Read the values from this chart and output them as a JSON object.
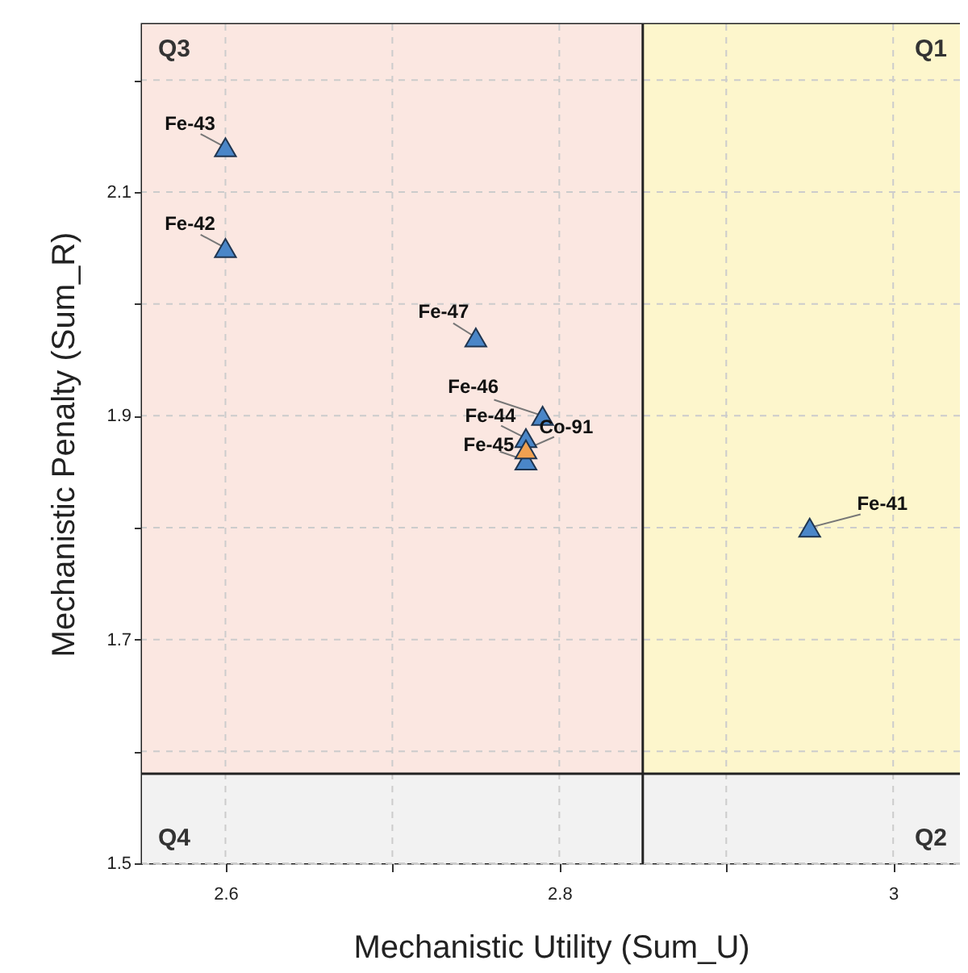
{
  "chart_data": {
    "type": "scatter",
    "xlabel": "Mechanistic Utility (Sum_U)",
    "ylabel": "Mechanistic Penalty (Sum_R)",
    "xlim": [
      2.55,
      3.04
    ],
    "ylim": [
      1.5,
      2.25
    ],
    "xticks": [
      2.6,
      {
        "value": 2.7,
        "label": null
      },
      2.8,
      {
        "value": 2.9,
        "label": null
      },
      3
    ],
    "yticks": [
      1.5,
      {
        "value": 1.6,
        "label": null
      },
      1.7,
      {
        "value": 1.8,
        "label": null
      },
      1.9,
      {
        "value": 2.0,
        "label": null
      },
      2.1,
      {
        "value": 2.2,
        "label": null
      }
    ],
    "grid": true,
    "marker": "triangle",
    "series": [
      {
        "color": "#4a86c8",
        "x": [
          2.6,
          2.6,
          2.75,
          2.79,
          2.78,
          2.78,
          2.95
        ],
        "values": [
          2.14,
          2.05,
          1.97,
          1.9,
          1.88,
          1.86,
          1.8
        ]
      },
      {
        "color": "#f0a050",
        "x": [
          2.78
        ],
        "values": [
          1.87
        ]
      }
    ],
    "bands": [
      {
        "axis": "x",
        "from": 2.55,
        "to": 2.85,
        "label": "Q3",
        "color": "#fbe7e1"
      },
      {
        "axis": "x",
        "from": 2.85,
        "to": 3.04,
        "label": "Q1",
        "color": "#fdf6cc"
      },
      {
        "axis": "y",
        "from": 1.5,
        "to": 1.58,
        "label": "Q4",
        "color": "#f2f2f2"
      }
    ],
    "ref_lines": [
      {
        "axis": "x",
        "value": 2.85,
        "label": null,
        "color": "#222222"
      },
      {
        "axis": "y",
        "value": 1.58,
        "label": null,
        "color": "#222222"
      }
    ],
    "annotations": [
      {
        "text": "Fe-43",
        "x": 2.6,
        "y": 2.14
      },
      {
        "text": "Fe-42",
        "x": 2.6,
        "y": 2.05
      },
      {
        "text": "Fe-47",
        "x": 2.75,
        "y": 1.97
      },
      {
        "text": "Fe-46",
        "x": 2.79,
        "y": 1.9
      },
      {
        "text": "Fe-44",
        "x": 2.78,
        "y": 1.88
      },
      {
        "text": "Co-91",
        "x": 2.78,
        "y": 1.87
      },
      {
        "text": "Fe-45",
        "x": 2.78,
        "y": 1.86
      },
      {
        "text": "Fe-41",
        "x": 2.95,
        "y": 1.8
      },
      "Q2"
    ]
  }
}
